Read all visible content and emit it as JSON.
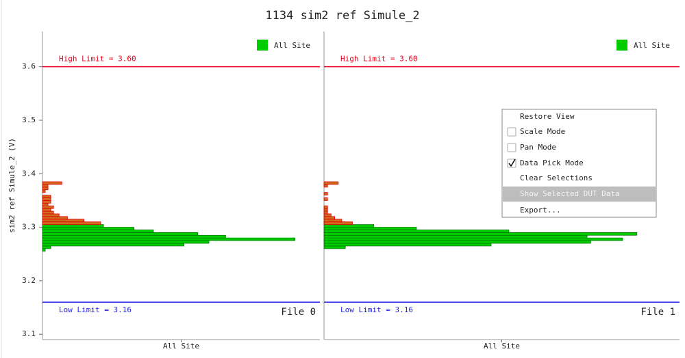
{
  "title": "1134 sim2 ref Simule_2",
  "chart_data": [
    {
      "type": "barh-histogram",
      "ylabel": "sim2 ref Simule_2 (V)",
      "xlabel": "All Site",
      "file_label": "File 0",
      "ylim": [
        3.09,
        3.666
      ],
      "yticks": [
        3.1,
        3.2,
        3.3,
        3.4,
        3.5,
        3.6
      ],
      "xlim": [
        0,
        100
      ],
      "legend": "upper right",
      "bins": [
        3.255,
        3.26,
        3.265,
        3.27,
        3.275,
        3.28,
        3.285,
        3.29,
        3.295,
        3.3,
        3.305,
        3.31,
        3.315,
        3.32,
        3.325,
        3.33,
        3.335,
        3.34,
        3.345,
        3.35,
        3.355,
        3.36,
        3.365,
        3.37,
        3.375,
        3.38,
        3.385,
        3.39
      ],
      "series": [
        {
          "name": "All Site",
          "color": "#00cc00",
          "values": [
            1,
            3,
            51,
            60,
            91,
            66,
            56,
            40,
            33,
            22,
            12,
            0,
            0,
            0,
            0,
            0,
            0,
            0,
            0,
            0,
            0,
            0,
            0,
            0,
            0,
            0,
            0
          ]
        },
        {
          "color": "#d2691e",
          "values": [
            0,
            0,
            0,
            0,
            0,
            0,
            0,
            0,
            0,
            0,
            21,
            15,
            9,
            6,
            4,
            3,
            4,
            2,
            3,
            3,
            3,
            0,
            1,
            2,
            2,
            7,
            0
          ]
        }
      ],
      "limits": [
        {
          "label": "High Limit = 3.60",
          "value": 3.6,
          "color": "#e8001c"
        },
        {
          "label": "Low Limit = 3.16",
          "value": 3.16,
          "color": "#1f1fe0"
        }
      ]
    },
    {
      "type": "barh-histogram",
      "xlabel": "All Site",
      "file_label": "File 1",
      "ylim": [
        3.09,
        3.666
      ],
      "xlim": [
        0,
        100
      ],
      "legend": "upper right",
      "bins": [
        3.255,
        3.26,
        3.265,
        3.27,
        3.275,
        3.28,
        3.285,
        3.29,
        3.295,
        3.3,
        3.305,
        3.31,
        3.315,
        3.32,
        3.325,
        3.33,
        3.335,
        3.34,
        3.345,
        3.35,
        3.355,
        3.36,
        3.365,
        3.37,
        3.375,
        3.38,
        3.385,
        3.39
      ],
      "series": [
        {
          "name": "All Site",
          "color": "#00cc00",
          "values": [
            0,
            6,
            47,
            75,
            84,
            74,
            88,
            52,
            26,
            14,
            6,
            0,
            0,
            0,
            0,
            0,
            0,
            0,
            0,
            0,
            0,
            0,
            0,
            0,
            0,
            0,
            0
          ]
        },
        {
          "color": "#d2691e",
          "values": [
            0,
            0,
            0,
            0,
            0,
            0,
            0,
            0,
            0,
            0,
            8,
            5,
            3,
            2,
            1,
            1,
            1,
            0,
            0,
            1,
            0,
            1,
            0,
            0,
            1,
            4,
            0
          ]
        }
      ],
      "limits": [
        {
          "label": "High Limit = 3.60",
          "value": 3.6,
          "color": "#e8001c"
        },
        {
          "label": "Low Limit = 3.16",
          "value": 3.16,
          "color": "#1f1fe0"
        }
      ]
    }
  ],
  "context_menu": {
    "items": [
      {
        "label": "Restore View"
      },
      {
        "label": "Scale Mode",
        "checked": false
      },
      {
        "label": "Pan Mode",
        "checked": false
      },
      {
        "label": "Data Pick Mode",
        "checked": true
      },
      {
        "label": "Clear Selections"
      },
      {
        "label": "Show Selected DUT Data",
        "highlighted": true
      },
      {
        "label": "Export..."
      }
    ]
  }
}
